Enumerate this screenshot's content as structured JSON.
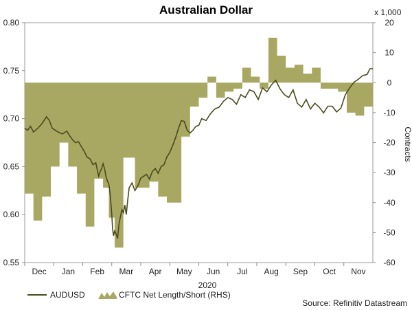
{
  "chart_data": {
    "type": "line+area",
    "title": "Australian Dollar",
    "left_axis": {
      "label": "",
      "ylim": [
        0.55,
        0.8
      ],
      "ticks": [
        0.55,
        0.6,
        0.65,
        0.7,
        0.75,
        0.8
      ],
      "tick_labels": [
        "0.55",
        "0.60",
        "0.65",
        "0.70",
        "0.75",
        "0.80"
      ]
    },
    "right_axis": {
      "label": "Contracts",
      "multiplier_label": "x 1,000",
      "ylim": [
        -60,
        20
      ],
      "ticks": [
        20,
        10,
        0,
        -10,
        -20,
        -30,
        -40,
        -50,
        -60
      ],
      "tick_labels": [
        "20",
        "10",
        "0",
        "-10",
        "-20",
        "-30",
        "-40",
        "-50",
        "-60"
      ]
    },
    "x_axis": {
      "months": [
        "Dec",
        "Jan",
        "Feb",
        "Mar",
        "Apr",
        "May",
        "Jun",
        "Jul",
        "Aug",
        "Sep",
        "Oct",
        "Nov"
      ],
      "year_label": "2020",
      "month_start_index": [
        0.5,
        1,
        2,
        3,
        4,
        5,
        6,
        7,
        8,
        9,
        10,
        11
      ]
    },
    "series": [
      {
        "name": "AUDUSD",
        "axis": "left",
        "color": "#4a4a1e",
        "x": [
          0,
          0.1,
          0.2,
          0.3,
          0.45,
          0.6,
          0.75,
          0.85,
          0.95,
          1.05,
          1.15,
          1.3,
          1.45,
          1.55,
          1.65,
          1.75,
          1.85,
          1.95,
          2.05,
          2.15,
          2.25,
          2.35,
          2.45,
          2.55,
          2.6,
          2.65,
          2.7,
          2.75,
          2.8,
          2.85,
          2.9,
          2.95,
          3.0,
          3.03,
          3.06,
          3.1,
          3.15,
          3.2,
          3.25,
          3.3,
          3.35,
          3.4,
          3.45,
          3.5,
          3.55,
          3.6,
          3.7,
          3.8,
          3.9,
          4.0,
          4.1,
          4.2,
          4.3,
          4.4,
          4.5,
          4.6,
          4.7,
          4.8,
          4.9,
          5.0,
          5.1,
          5.2,
          5.3,
          5.4,
          5.5,
          5.6,
          5.7,
          5.8,
          5.9,
          6.0,
          6.1,
          6.25,
          6.4,
          6.55,
          6.7,
          6.85,
          7.0,
          7.15,
          7.3,
          7.45,
          7.6,
          7.75,
          7.9,
          8.05,
          8.2,
          8.35,
          8.5,
          8.65,
          8.8,
          8.95,
          9.1,
          9.25,
          9.4,
          9.55,
          9.7,
          9.85,
          10.0,
          10.15,
          10.3,
          10.45,
          10.6,
          10.75,
          10.9,
          11.05,
          11.2,
          11.35,
          11.5,
          11.65,
          11.8,
          11.9,
          12.0
        ],
        "values": [
          0.69,
          0.688,
          0.692,
          0.686,
          0.69,
          0.695,
          0.702,
          0.698,
          0.69,
          0.688,
          0.686,
          0.684,
          0.687,
          0.682,
          0.678,
          0.675,
          0.676,
          0.671,
          0.666,
          0.66,
          0.658,
          0.652,
          0.654,
          0.64,
          0.645,
          0.648,
          0.653,
          0.648,
          0.64,
          0.635,
          0.632,
          0.62,
          0.6,
          0.585,
          0.578,
          0.583,
          0.58,
          0.575,
          0.59,
          0.598,
          0.605,
          0.602,
          0.61,
          0.6,
          0.615,
          0.628,
          0.633,
          0.625,
          0.63,
          0.638,
          0.64,
          0.642,
          0.637,
          0.645,
          0.648,
          0.643,
          0.65,
          0.652,
          0.66,
          0.665,
          0.672,
          0.68,
          0.69,
          0.698,
          0.697,
          0.688,
          0.685,
          0.688,
          0.692,
          0.693,
          0.7,
          0.698,
          0.705,
          0.71,
          0.712,
          0.718,
          0.722,
          0.72,
          0.715,
          0.725,
          0.722,
          0.73,
          0.728,
          0.72,
          0.732,
          0.728,
          0.735,
          0.74,
          0.731,
          0.725,
          0.722,
          0.73,
          0.716,
          0.712,
          0.72,
          0.71,
          0.716,
          0.712,
          0.706,
          0.713,
          0.713,
          0.707,
          0.711,
          0.725,
          0.732,
          0.738,
          0.741,
          0.745,
          0.746,
          0.752,
          0.752
        ]
      },
      {
        "name": "CFTC Net Length/Short (RHS)",
        "axis": "right",
        "color": "#a8a862",
        "x": [
          0,
          0.3,
          0.6,
          0.9,
          1.2,
          1.5,
          1.8,
          2.1,
          2.4,
          2.7,
          2.9,
          3.1,
          3.4,
          3.6,
          3.8,
          4.1,
          4.3,
          4.6,
          4.9,
          5.1,
          5.4,
          5.7,
          6.0,
          6.3,
          6.6,
          6.9,
          7.2,
          7.5,
          7.8,
          8.1,
          8.4,
          8.7,
          9.0,
          9.3,
          9.6,
          9.9,
          10.2,
          10.5,
          10.8,
          11.1,
          11.4,
          11.7,
          12.0
        ],
        "values": [
          -37,
          -46,
          -38,
          -28,
          -20,
          -28,
          -37,
          -48,
          -32,
          -35,
          -45,
          -55,
          -25,
          -25,
          -35,
          -35,
          -33,
          -38,
          -40,
          -40,
          -18,
          -8,
          -5,
          2,
          -5,
          -3,
          -2,
          5,
          2,
          -2,
          15,
          9,
          5,
          6,
          3,
          5,
          -2,
          -2,
          -3,
          -10,
          -11,
          -8,
          -6
        ]
      }
    ],
    "legend": [
      "AUDUSD",
      "CFTC Net Length/Short (RHS)"
    ],
    "source": "Source: Refinitiv Datastream"
  }
}
